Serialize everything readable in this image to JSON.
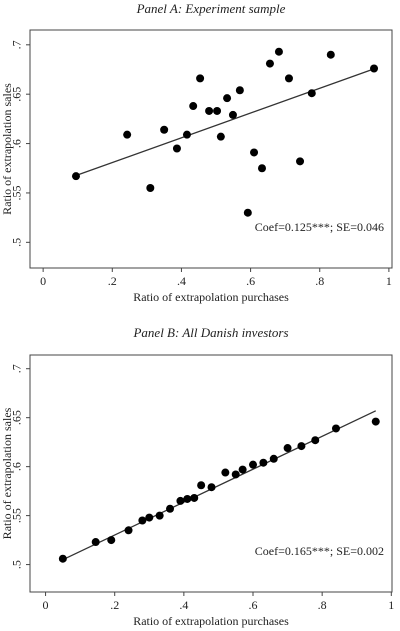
{
  "chart_data": [
    {
      "type": "scatter",
      "title": "Panel A: Experiment sample",
      "xlabel": "Ratio of extrapolation purchases",
      "ylabel": "Ratio of extrapolation sales",
      "annotation": "Coef=0.125***; SE=0.046",
      "color": "#000000",
      "x": [
        0.095,
        0.243,
        0.31,
        0.35,
        0.387,
        0.416,
        0.434,
        0.454,
        0.48,
        0.503,
        0.514,
        0.532,
        0.549,
        0.569,
        0.592,
        0.61,
        0.633,
        0.656,
        0.682,
        0.711,
        0.743,
        0.777,
        0.832,
        0.957
      ],
      "values": [
        0.567,
        0.609,
        0.555,
        0.614,
        0.595,
        0.609,
        0.638,
        0.666,
        0.633,
        0.633,
        0.607,
        0.646,
        0.629,
        0.654,
        0.53,
        0.591,
        0.575,
        0.681,
        0.693,
        0.666,
        0.582,
        0.651,
        0.69,
        0.676
      ],
      "fit": {
        "x": [
          0.09,
          0.96
        ],
        "values": [
          0.567,
          0.676
        ]
      },
      "xlim": [
        -0.038,
        1.009
      ],
      "ylim": [
        0.474,
        0.715
      ],
      "xticks": [
        0,
        {
          "value": 0.2,
          "label": ".2"
        },
        {
          "value": 0.4,
          "label": ".4"
        },
        {
          "value": 0.6,
          "label": ".6"
        },
        {
          "value": 0.8,
          "label": ".8"
        },
        1
      ],
      "yticks": [
        {
          "value": 0.5,
          "label": ".5"
        },
        {
          "value": 0.55,
          "label": ".55"
        },
        {
          "value": 0.6,
          "label": ".6"
        },
        {
          "value": 0.65,
          "label": ".65"
        },
        {
          "value": 0.7,
          "label": ".7"
        }
      ]
    },
    {
      "type": "scatter",
      "title": "Panel B: All Danish investors",
      "xlabel": "Ratio of extrapolation purchases",
      "ylabel": "Ratio of extrapolation sales",
      "annotation": "Coef=0.165***; SE=0.002",
      "color": "#000000",
      "x": [
        0.05,
        0.145,
        0.19,
        0.24,
        0.28,
        0.3,
        0.33,
        0.36,
        0.39,
        0.41,
        0.43,
        0.45,
        0.48,
        0.52,
        0.55,
        0.57,
        0.6,
        0.63,
        0.66,
        0.7,
        0.74,
        0.78,
        0.84,
        0.955
      ],
      "values": [
        0.506,
        0.523,
        0.525,
        0.535,
        0.545,
        0.548,
        0.55,
        0.557,
        0.565,
        0.567,
        0.568,
        0.581,
        0.579,
        0.594,
        0.592,
        0.597,
        0.602,
        0.604,
        0.608,
        0.619,
        0.621,
        0.627,
        0.639,
        0.646
      ],
      "fit": {
        "x": [
          0.05,
          0.955
        ],
        "values": [
          0.505,
          0.657
        ]
      },
      "xlim": [
        -0.045,
        1.002
      ],
      "ylim": [
        0.472,
        0.714
      ],
      "xticks": [
        0,
        {
          "value": 0.2,
          "label": ".2"
        },
        {
          "value": 0.4,
          "label": ".4"
        },
        {
          "value": 0.6,
          "label": ".6"
        },
        {
          "value": 0.8,
          "label": ".8"
        },
        1
      ],
      "yticks": [
        {
          "value": 0.5,
          "label": ".5"
        },
        {
          "value": 0.55,
          "label": ".55"
        },
        {
          "value": 0.6,
          "label": ".6"
        },
        {
          "value": 0.65,
          "label": ".65"
        },
        {
          "value": 0.7,
          "label": ".7"
        }
      ]
    }
  ]
}
